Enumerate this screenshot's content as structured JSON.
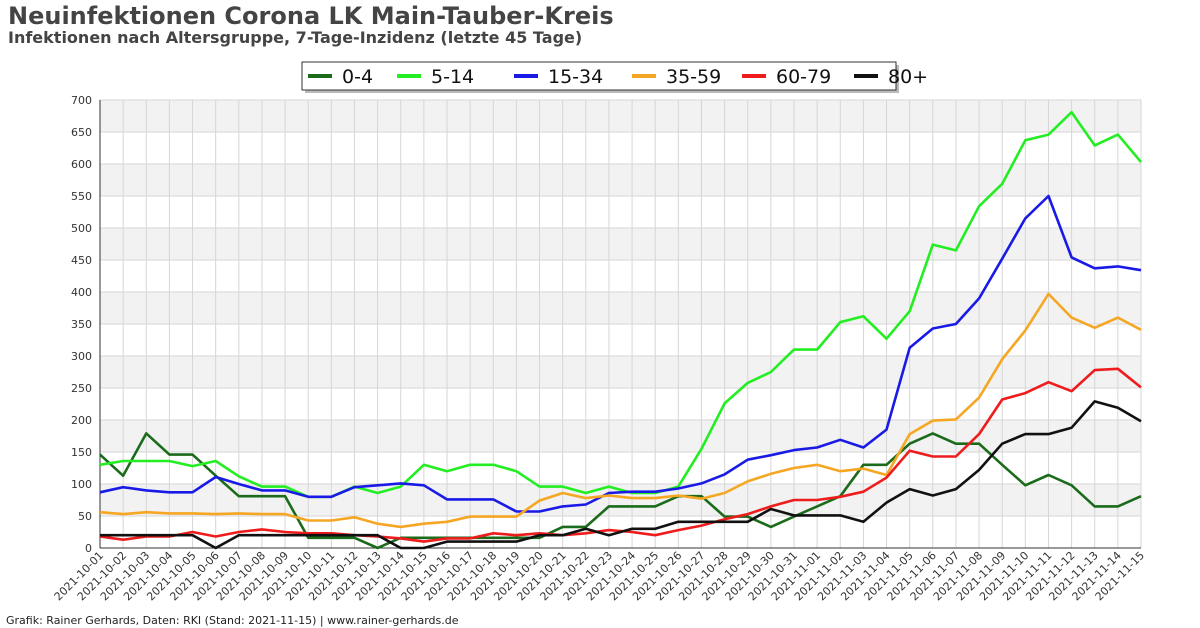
{
  "chart_data": {
    "type": "line",
    "title": "Neuinfektionen Corona LK Main-Tauber-Kreis",
    "subtitle": "Infektionen nach Altersgruppe, 7-Tage-Inzidenz (letzte 45 Tage)",
    "credit": "Grafik: Rainer Gerhards, Daten: RKI (Stand: 2021-11-15) | www.rainer-gerhards.de",
    "ylim": [
      0,
      700
    ],
    "yticks": [
      "0",
      "50",
      "100",
      "150",
      "200",
      "250",
      "300",
      "350",
      "400",
      "450",
      "500",
      "550",
      "600",
      "650",
      "700"
    ],
    "grid": true,
    "legend_position": "top-center",
    "x": [
      "2021-10-01",
      "2021-10-02",
      "2021-10-03",
      "2021-10-04",
      "2021-10-05",
      "2021-10-06",
      "2021-10-07",
      "2021-10-08",
      "2021-10-09",
      "2021-10-10",
      "2021-10-11",
      "2021-10-12",
      "2021-10-13",
      "2021-10-14",
      "2021-10-15",
      "2021-10-16",
      "2021-10-17",
      "2021-10-18",
      "2021-10-19",
      "2021-10-20",
      "2021-10-21",
      "2021-10-22",
      "2021-10-23",
      "2021-10-24",
      "2021-10-25",
      "2021-10-26",
      "2021-10-27",
      "2021-10-28",
      "2021-10-29",
      "2021-10-30",
      "2021-10-31",
      "2021-11-01",
      "2021-11-02",
      "2021-11-03",
      "2021-11-04",
      "2021-11-05",
      "2021-11-06",
      "2021-11-07",
      "2021-11-08",
      "2021-11-09",
      "2021-11-10",
      "2021-11-11",
      "2021-11-12",
      "2021-11-13",
      "2021-11-14",
      "2021-11-15"
    ],
    "series": [
      {
        "name": "0-4",
        "color": "#1a6b1a",
        "values": [
          146,
          113,
          179,
          146,
          146,
          113,
          81,
          81,
          81,
          16,
          16,
          16,
          0,
          16,
          16,
          16,
          16,
          16,
          16,
          16,
          33,
          33,
          65,
          65,
          65,
          81,
          81,
          49,
          49,
          33,
          49,
          65,
          81,
          130,
          130,
          163,
          179,
          163,
          163,
          130,
          98,
          114,
          98,
          65,
          65,
          81
        ]
      },
      {
        "name": "5-14",
        "color": "#22ee22",
        "values": [
          130,
          136,
          136,
          136,
          128,
          136,
          112,
          96,
          96,
          80,
          80,
          96,
          86,
          96,
          130,
          120,
          130,
          130,
          120,
          96,
          96,
          86,
          96,
          86,
          86,
          96,
          155,
          226,
          258,
          275,
          310,
          310,
          353,
          362,
          327,
          370,
          474,
          465,
          534,
          569,
          637,
          646,
          681,
          629,
          646,
          603
        ]
      },
      {
        "name": "15-34",
        "color": "#1a1ae6",
        "values": [
          87,
          95,
          90,
          87,
          87,
          111,
          100,
          90,
          90,
          80,
          80,
          95,
          98,
          101,
          98,
          76,
          76,
          76,
          57,
          57,
          65,
          68,
          86,
          88,
          88,
          93,
          101,
          115,
          138,
          145,
          153,
          157,
          169,
          157,
          185,
          313,
          343,
          350,
          390,
          452,
          515,
          550,
          454,
          437,
          440,
          434
        ]
      },
      {
        "name": "35-59",
        "color": "#f5a623",
        "values": [
          56,
          53,
          56,
          54,
          54,
          53,
          54,
          53,
          53,
          43,
          43,
          48,
          38,
          33,
          38,
          41,
          49,
          49,
          49,
          74,
          86,
          78,
          82,
          78,
          78,
          82,
          77,
          86,
          104,
          116,
          125,
          130,
          120,
          124,
          114,
          178,
          199,
          201,
          235,
          295,
          340,
          397,
          360,
          344,
          360,
          341
        ]
      },
      {
        "name": "60-79",
        "color": "#ee1c1c",
        "values": [
          18,
          13,
          18,
          18,
          25,
          18,
          25,
          29,
          25,
          23,
          23,
          20,
          18,
          15,
          10,
          15,
          15,
          23,
          20,
          23,
          20,
          23,
          28,
          25,
          20,
          28,
          35,
          45,
          53,
          65,
          75,
          75,
          80,
          88,
          110,
          152,
          143,
          143,
          178,
          232,
          242,
          259,
          245,
          278,
          280,
          251
        ]
      },
      {
        "name": "80+",
        "color": "#111111",
        "values": [
          20,
          20,
          20,
          20,
          20,
          0,
          20,
          20,
          20,
          20,
          20,
          20,
          20,
          0,
          0,
          10,
          10,
          10,
          10,
          20,
          20,
          30,
          20,
          30,
          30,
          41,
          41,
          41,
          41,
          61,
          51,
          51,
          51,
          41,
          71,
          92,
          82,
          92,
          122,
          163,
          178,
          178,
          188,
          229,
          219,
          198
        ]
      }
    ]
  }
}
